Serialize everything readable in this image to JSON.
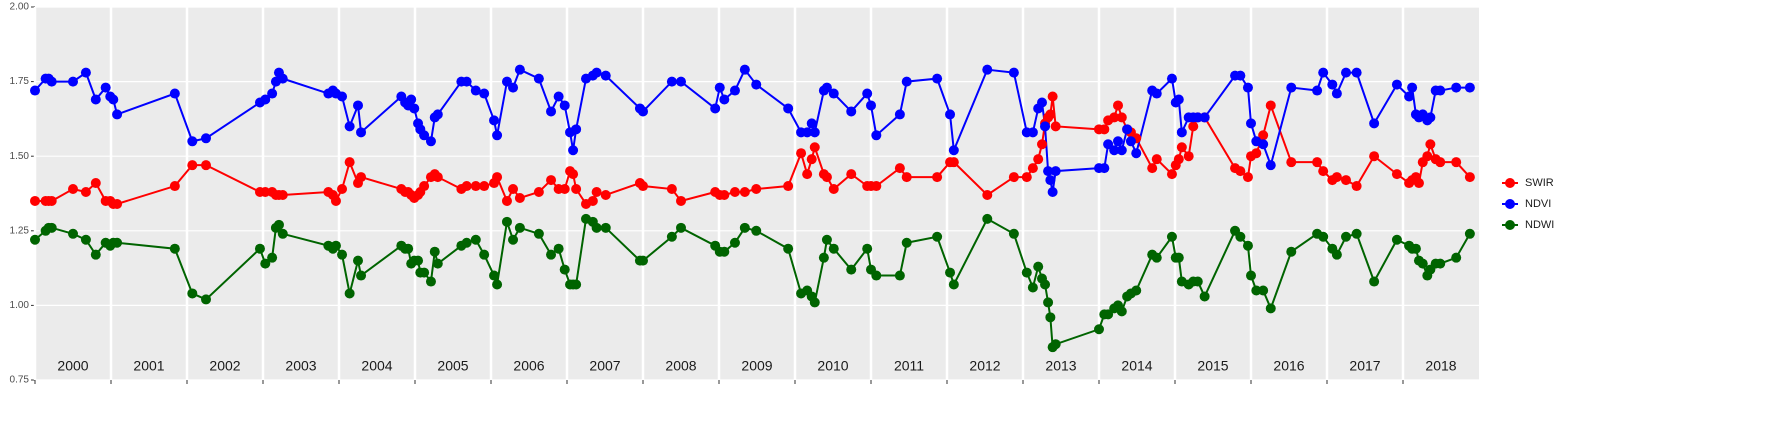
{
  "chart_data": {
    "type": "line",
    "x": [
      2000.0,
      2000.14,
      2000.18,
      2000.22,
      2000.5,
      2000.67,
      2000.8,
      2000.93,
      2000.99,
      2001.03,
      2001.08,
      2001.84,
      2002.07,
      2002.25,
      2002.96,
      2003.03,
      2003.12,
      2003.17,
      2003.21,
      2003.26,
      2003.86,
      2003.92,
      2003.96,
      2004.04,
      2004.14,
      2004.25,
      2004.29,
      2004.82,
      2004.87,
      2004.91,
      2004.95,
      2004.99,
      2005.04,
      2005.07,
      2005.12,
      2005.21,
      2005.26,
      2005.3,
      2005.61,
      2005.68,
      2005.8,
      2005.91,
      2006.04,
      2006.08,
      2006.21,
      2006.29,
      2006.38,
      2006.63,
      2006.79,
      2006.89,
      2006.97,
      2007.04,
      2007.08,
      2007.12,
      2007.25,
      2007.34,
      2007.39,
      2007.51,
      2007.96,
      2008.0,
      2008.38,
      2008.5,
      2008.95,
      2009.01,
      2009.07,
      2009.21,
      2009.34,
      2009.49,
      2009.91,
      2010.08,
      2010.16,
      2010.22,
      2010.26,
      2010.38,
      2010.42,
      2010.51,
      2010.74,
      2010.95,
      2011.0,
      2011.07,
      2011.38,
      2011.47,
      2011.87,
      2012.04,
      2012.09,
      2012.53,
      2012.88,
      2013.05,
      2013.13,
      2013.2,
      2013.25,
      2013.29,
      2013.33,
      2013.36,
      2013.39,
      2013.43,
      2014.0,
      2014.07,
      2014.12,
      2014.2,
      2014.25,
      2014.3,
      2014.37,
      2014.42,
      2014.49,
      2014.7,
      2014.76,
      2014.96,
      2015.01,
      2015.05,
      2015.09,
      2015.18,
      2015.24,
      2015.3,
      2015.39,
      2015.79,
      2015.86,
      2015.96,
      2016.0,
      2016.07,
      2016.16,
      2016.26,
      2016.53,
      2016.87,
      2016.95,
      2017.07,
      2017.13,
      2017.25,
      2017.39,
      2017.62,
      2017.92,
      2018.08,
      2018.12,
      2018.17,
      2018.21,
      2018.26,
      2018.32,
      2018.36,
      2018.43,
      2018.49,
      2018.7,
      2018.88
    ],
    "series": [
      {
        "name": "SWIR",
        "color": "#ff0000",
        "values": [
          1.35,
          1.35,
          1.35,
          1.35,
          1.39,
          1.38,
          1.41,
          1.35,
          1.35,
          1.34,
          1.34,
          1.4,
          1.47,
          1.47,
          1.38,
          1.38,
          1.38,
          1.37,
          1.37,
          1.37,
          1.38,
          1.37,
          1.35,
          1.39,
          1.48,
          1.41,
          1.43,
          1.39,
          1.38,
          1.38,
          1.37,
          1.36,
          1.37,
          1.38,
          1.4,
          1.43,
          1.44,
          1.43,
          1.39,
          1.4,
          1.4,
          1.4,
          1.41,
          1.43,
          1.35,
          1.39,
          1.36,
          1.38,
          1.42,
          1.39,
          1.39,
          1.45,
          1.44,
          1.39,
          1.34,
          1.35,
          1.38,
          1.37,
          1.41,
          1.4,
          1.39,
          1.35,
          1.38,
          1.37,
          1.37,
          1.38,
          1.38,
          1.39,
          1.4,
          1.51,
          1.44,
          1.49,
          1.53,
          1.44,
          1.43,
          1.39,
          1.44,
          1.4,
          1.4,
          1.4,
          1.46,
          1.43,
          1.43,
          1.48,
          1.48,
          1.37,
          1.43,
          1.43,
          1.46,
          1.49,
          1.54,
          1.61,
          1.63,
          1.64,
          1.7,
          1.6,
          1.59,
          1.59,
          1.62,
          1.63,
          1.67,
          1.63,
          1.59,
          1.58,
          1.56,
          1.46,
          1.49,
          1.44,
          1.47,
          1.49,
          1.53,
          1.5,
          1.6,
          1.63,
          1.63,
          1.46,
          1.45,
          1.43,
          1.5,
          1.51,
          1.57,
          1.67,
          1.48,
          1.48,
          1.45,
          1.42,
          1.43,
          1.42,
          1.4,
          1.5,
          1.44,
          1.41,
          1.42,
          1.43,
          1.41,
          1.48,
          1.5,
          1.54,
          1.49,
          1.48,
          1.48,
          1.43
        ]
      },
      {
        "name": "NDVI",
        "color": "#0000ff",
        "values": [
          1.72,
          1.76,
          1.76,
          1.75,
          1.75,
          1.78,
          1.69,
          1.73,
          1.7,
          1.69,
          1.64,
          1.71,
          1.55,
          1.56,
          1.68,
          1.69,
          1.71,
          1.75,
          1.78,
          1.76,
          1.71,
          1.72,
          1.71,
          1.7,
          1.6,
          1.67,
          1.58,
          1.7,
          1.68,
          1.67,
          1.69,
          1.66,
          1.61,
          1.59,
          1.57,
          1.55,
          1.63,
          1.64,
          1.75,
          1.75,
          1.72,
          1.71,
          1.62,
          1.57,
          1.75,
          1.73,
          1.79,
          1.76,
          1.65,
          1.7,
          1.67,
          1.58,
          1.52,
          1.59,
          1.76,
          1.77,
          1.78,
          1.77,
          1.66,
          1.65,
          1.75,
          1.75,
          1.66,
          1.73,
          1.69,
          1.72,
          1.79,
          1.74,
          1.66,
          1.58,
          1.58,
          1.61,
          1.58,
          1.72,
          1.73,
          1.71,
          1.65,
          1.71,
          1.67,
          1.57,
          1.64,
          1.75,
          1.76,
          1.64,
          1.52,
          1.79,
          1.78,
          1.58,
          1.58,
          1.66,
          1.68,
          1.6,
          1.45,
          1.42,
          1.38,
          1.45,
          1.46,
          1.46,
          1.54,
          1.52,
          1.55,
          1.52,
          1.59,
          1.55,
          1.51,
          1.72,
          1.71,
          1.76,
          1.68,
          1.69,
          1.58,
          1.63,
          1.63,
          1.63,
          1.63,
          1.77,
          1.77,
          1.73,
          1.61,
          1.55,
          1.54,
          1.47,
          1.73,
          1.72,
          1.78,
          1.74,
          1.71,
          1.78,
          1.78,
          1.61,
          1.74,
          1.7,
          1.73,
          1.64,
          1.63,
          1.64,
          1.62,
          1.63,
          1.72,
          1.72,
          1.73,
          1.73
        ]
      },
      {
        "name": "NDWI",
        "color": "#006400",
        "values": [
          1.22,
          1.25,
          1.26,
          1.26,
          1.24,
          1.22,
          1.17,
          1.21,
          1.2,
          1.21,
          1.21,
          1.19,
          1.04,
          1.02,
          1.19,
          1.14,
          1.16,
          1.26,
          1.27,
          1.24,
          1.2,
          1.19,
          1.2,
          1.17,
          1.04,
          1.15,
          1.1,
          1.2,
          1.19,
          1.19,
          1.14,
          1.15,
          1.15,
          1.11,
          1.11,
          1.08,
          1.18,
          1.14,
          1.2,
          1.21,
          1.22,
          1.17,
          1.1,
          1.07,
          1.28,
          1.22,
          1.26,
          1.24,
          1.17,
          1.19,
          1.12,
          1.07,
          1.07,
          1.07,
          1.29,
          1.28,
          1.26,
          1.26,
          1.15,
          1.15,
          1.23,
          1.26,
          1.2,
          1.18,
          1.18,
          1.21,
          1.26,
          1.25,
          1.19,
          1.04,
          1.05,
          1.03,
          1.01,
          1.16,
          1.22,
          1.19,
          1.12,
          1.19,
          1.12,
          1.1,
          1.1,
          1.21,
          1.23,
          1.11,
          1.07,
          1.29,
          1.24,
          1.11,
          1.06,
          1.13,
          1.09,
          1.07,
          1.01,
          0.96,
          0.86,
          0.87,
          0.92,
          0.97,
          0.97,
          0.99,
          1.0,
          0.98,
          1.03,
          1.04,
          1.05,
          1.17,
          1.16,
          1.23,
          1.16,
          1.16,
          1.08,
          1.07,
          1.08,
          1.08,
          1.03,
          1.25,
          1.23,
          1.2,
          1.1,
          1.05,
          1.05,
          0.99,
          1.18,
          1.24,
          1.23,
          1.19,
          1.17,
          1.23,
          1.24,
          1.08,
          1.22,
          1.2,
          1.19,
          1.19,
          1.15,
          1.14,
          1.1,
          1.12,
          1.14,
          1.14,
          1.16,
          1.24
        ]
      }
    ],
    "xlim": [
      2000,
      2019
    ],
    "xticks": [
      {
        "value": 2000,
        "label": "2000"
      },
      {
        "value": 2001,
        "label": "2001"
      },
      {
        "value": 2002,
        "label": "2002"
      },
      {
        "value": 2003,
        "label": "2003"
      },
      {
        "value": 2004,
        "label": "2004"
      },
      {
        "value": 2005,
        "label": "2005"
      },
      {
        "value": 2006,
        "label": "2006"
      },
      {
        "value": 2007,
        "label": "2007"
      },
      {
        "value": 2008,
        "label": "2008"
      },
      {
        "value": 2009,
        "label": "2009"
      },
      {
        "value": 2010,
        "label": "2010"
      },
      {
        "value": 2011,
        "label": "2011"
      },
      {
        "value": 2012,
        "label": "2012"
      },
      {
        "value": 2013,
        "label": "2013"
      },
      {
        "value": 2014,
        "label": "2014"
      },
      {
        "value": 2015,
        "label": "2015"
      },
      {
        "value": 2016,
        "label": "2016"
      },
      {
        "value": 2017,
        "label": "2017"
      },
      {
        "value": 2018,
        "label": "2018"
      }
    ],
    "ylim": [
      0.75,
      2.0
    ],
    "yticks": [
      {
        "value": 0.75,
        "label": "0.75"
      },
      {
        "value": 1.0,
        "label": "1.00"
      },
      {
        "value": 1.25,
        "label": "1.25"
      },
      {
        "value": 1.5,
        "label": "1.50"
      },
      {
        "value": 1.75,
        "label": "1.75"
      },
      {
        "value": 2.0,
        "label": "2.00"
      }
    ],
    "grid": true,
    "legend": "right"
  }
}
